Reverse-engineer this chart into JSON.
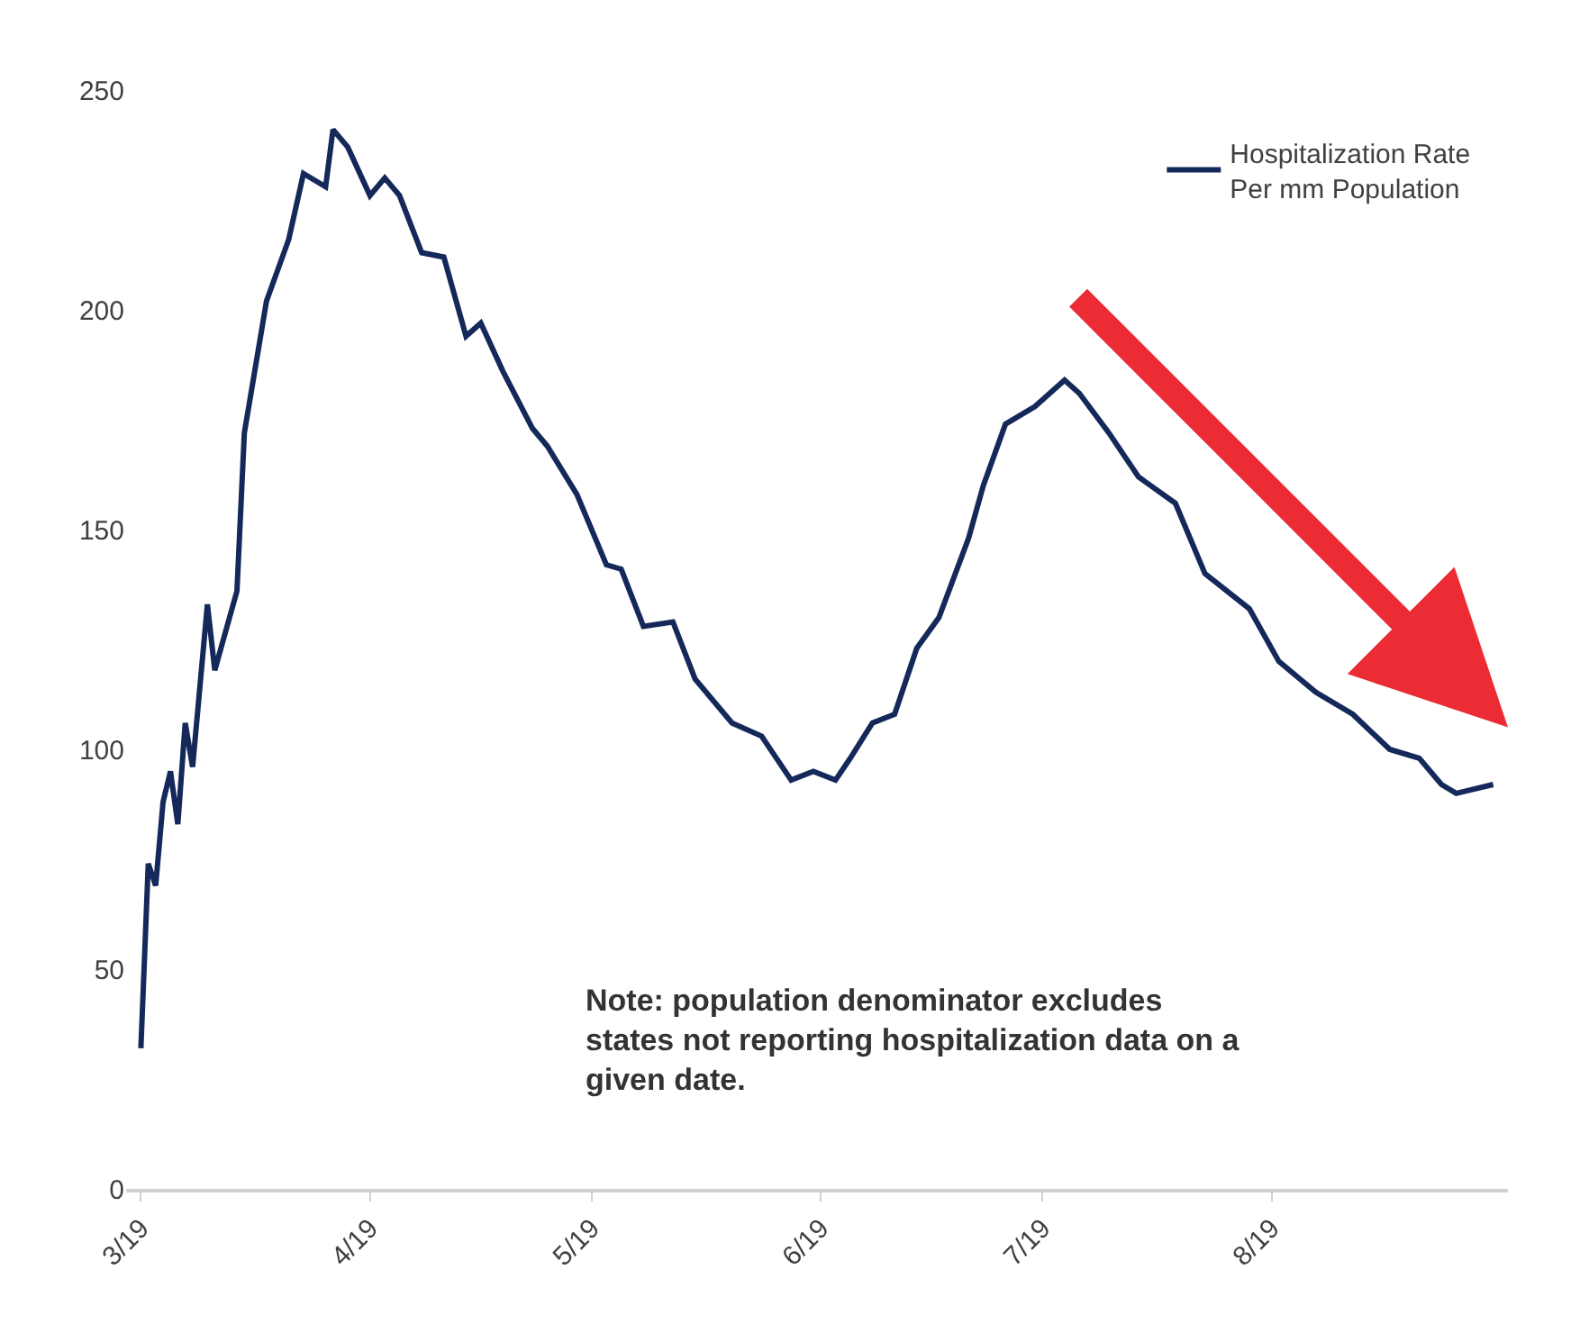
{
  "chart_data": {
    "type": "line",
    "x": [
      "--03-19",
      "--03-20",
      "--03-21",
      "--03-22",
      "--03-23",
      "--03-24",
      "--03-25",
      "--03-26",
      "--03-28",
      "--03-29",
      "--04-01",
      "--04-02",
      "--04-05",
      "--04-08",
      "--04-10",
      "--04-12",
      "--04-13",
      "--04-14",
      "--04-16",
      "--04-19",
      "--04-21",
      "--04-23",
      "--04-26",
      "--04-29",
      "--05-02",
      "--05-04",
      "--05-07",
      "--05-11",
      "--05-13",
      "--05-17",
      "--05-21",
      "--05-23",
      "--05-26",
      "--05-30",
      "--06-02",
      "--06-07",
      "--06-11",
      "--06-15",
      "--06-18",
      "--06-21",
      "--06-23",
      "--06-26",
      "--06-29",
      "--07-02",
      "--07-05",
      "--07-09",
      "--07-11",
      "--07-14",
      "--07-18",
      "--07-22",
      "--07-24",
      "--07-28",
      "--08-01",
      "--08-06",
      "--08-10",
      "--08-16",
      "--08-20",
      "--08-25",
      "--08-30",
      "--09-04",
      "--09-08",
      "--09-11",
      "--09-13",
      "--09-18"
    ],
    "series": [
      {
        "name": "Hospitalization Rate\nPer mm Population",
        "color": "#14285a",
        "values": [
          32,
          74,
          69,
          88,
          95,
          83,
          106,
          96,
          133,
          118,
          136,
          172,
          202,
          216,
          231,
          229,
          228,
          241,
          237,
          226,
          230,
          226,
          213,
          212,
          194,
          197,
          186,
          173,
          169,
          158,
          142,
          141,
          128,
          129,
          116,
          106,
          103,
          93,
          95,
          93,
          98,
          106,
          108,
          123,
          130,
          148,
          160,
          174,
          178,
          184,
          181,
          172,
          162,
          156,
          140,
          132,
          120,
          113,
          108,
          100,
          98,
          92,
          90,
          92
        ]
      }
    ],
    "xlim": [
      "--03-17",
      "--09-20"
    ],
    "xticks": [
      {
        "value": "--03-19",
        "label": "3/19"
      },
      {
        "value": "--04-19",
        "label": "4/19"
      },
      {
        "value": "--05-19",
        "label": "5/19"
      },
      {
        "value": "--06-19",
        "label": "6/19"
      },
      {
        "value": "--07-19",
        "label": "7/19"
      },
      {
        "value": "--08-19",
        "label": "8/19"
      }
    ],
    "ylim": [
      0,
      250
    ],
    "yticks": [
      0,
      50,
      100,
      150,
      200,
      250
    ],
    "legend": "top right",
    "marker": "none",
    "line_style": "solid",
    "annotations": [
      "Note: population denominator excludes\nstates not reporting hospitalization data on a\ngiven date."
    ]
  }
}
